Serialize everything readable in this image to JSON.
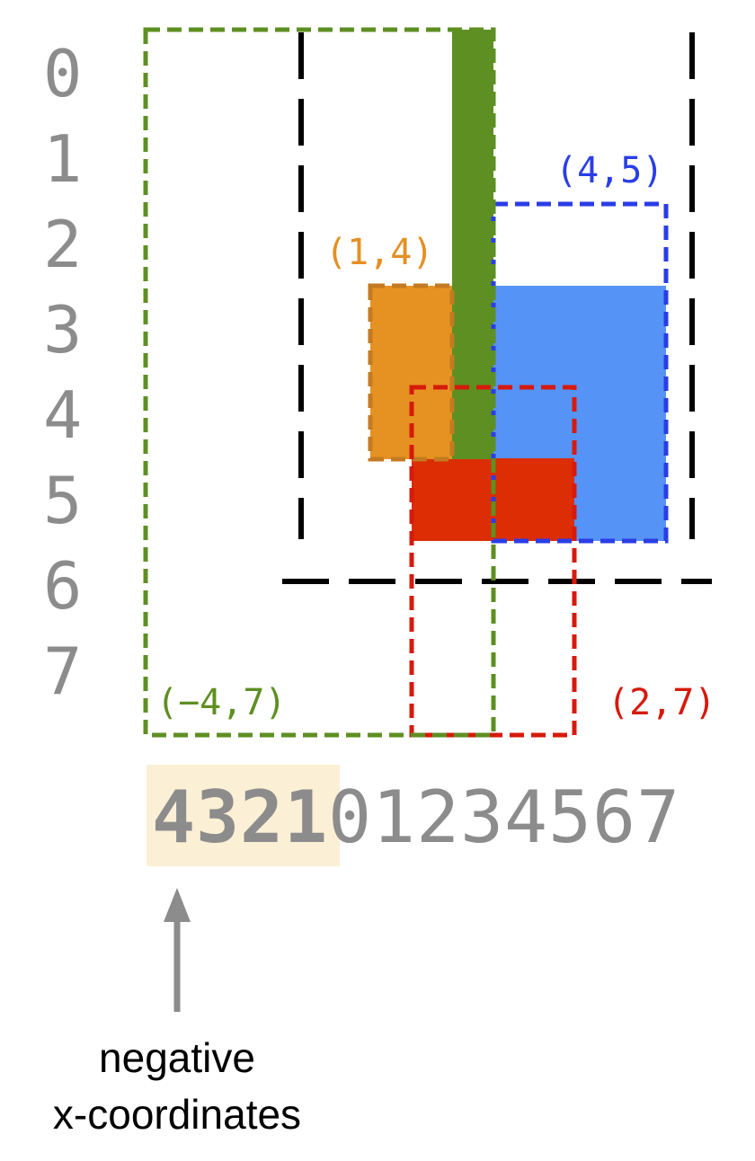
{
  "y_axis": {
    "labels": [
      "0",
      "1",
      "2",
      "3",
      "4",
      "5",
      "6",
      "7"
    ],
    "color": "#8c8c8c"
  },
  "x_axis": {
    "negative_labels": [
      "4",
      "3",
      "2",
      "1"
    ],
    "positive_labels": [
      "0",
      "1",
      "2",
      "3",
      "4",
      "5",
      "6",
      "7"
    ],
    "color": "#8c8c8c",
    "negative_highlight_color": "#fbefd5"
  },
  "boxes": [
    {
      "name": "green",
      "label": "(−4,7)",
      "color": "#5e8f22",
      "fill_color": "#5e8f22"
    },
    {
      "name": "orange",
      "label": "(1,4)",
      "color": "#e58f24",
      "fill_color": "#e59222"
    },
    {
      "name": "blue",
      "label": "(4,5)",
      "color": "#2a3ee6",
      "fill_color": "#5593f7"
    },
    {
      "name": "red",
      "label": "(2,7)",
      "color": "#d61a0c",
      "fill_color": "#dc2d04"
    }
  ],
  "annotation": {
    "line1": "negative",
    "line2": "x-coordinates",
    "arrow_color": "#8c8c8c"
  },
  "colors": {
    "boundary": "#000000"
  }
}
